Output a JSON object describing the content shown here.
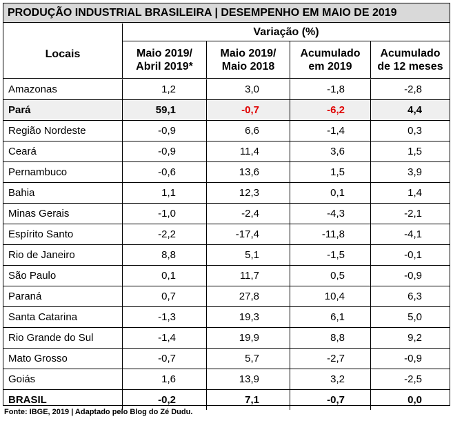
{
  "title": "PRODUÇÃO INDUSTRIAL BRASILEIRA | DESEMPENHO EM MAIO DE 2019",
  "header": {
    "locais": "Locais",
    "variacao": "Variação (%)",
    "col1_line1": "Maio 2019/",
    "col1_line2": "Abril 2019*",
    "col2_line1": "Maio 2019/",
    "col2_line2": "Maio 2018",
    "col3_line1": "Acumulado",
    "col3_line2": "em 2019",
    "col4_line1": "Acumulado",
    "col4_line2": "de 12 meses"
  },
  "highlight_color": "#e00000",
  "rows": [
    {
      "local": "Amazonas",
      "v1": "1,2",
      "v2": "3,0",
      "v3": "-1,8",
      "v4": "-2,8"
    },
    {
      "local": "Pará",
      "v1": "59,1",
      "v2": "-0,7",
      "v3": "-6,2",
      "v4": "4,4"
    },
    {
      "local": "Região Nordeste",
      "v1": "-0,9",
      "v2": "6,6",
      "v3": "-1,4",
      "v4": "0,3"
    },
    {
      "local": "Ceará",
      "v1": "-0,9",
      "v2": "11,4",
      "v3": "3,6",
      "v4": "1,5"
    },
    {
      "local": "Pernambuco",
      "v1": "-0,6",
      "v2": "13,6",
      "v3": "1,5",
      "v4": "3,9"
    },
    {
      "local": "Bahia",
      "v1": "1,1",
      "v2": "12,3",
      "v3": "0,1",
      "v4": "1,4"
    },
    {
      "local": "Minas Gerais",
      "v1": "-1,0",
      "v2": "-2,4",
      "v3": "-4,3",
      "v4": "-2,1"
    },
    {
      "local": "Espírito Santo",
      "v1": "-2,2",
      "v2": "-17,4",
      "v3": "-11,8",
      "v4": "-4,1"
    },
    {
      "local": "Rio de Janeiro",
      "v1": "8,8",
      "v2": "5,1",
      "v3": "-1,5",
      "v4": "-0,1"
    },
    {
      "local": "São Paulo",
      "v1": "0,1",
      "v2": "11,7",
      "v3": "0,5",
      "v4": "-0,9"
    },
    {
      "local": "Paraná",
      "v1": "0,7",
      "v2": "27,8",
      "v3": "10,4",
      "v4": "6,3"
    },
    {
      "local": "Santa Catarina",
      "v1": "-1,3",
      "v2": "19,3",
      "v3": "6,1",
      "v4": "5,0"
    },
    {
      "local": "Rio Grande do Sul",
      "v1": "-1,4",
      "v2": "19,9",
      "v3": "8,8",
      "v4": "9,2"
    },
    {
      "local": "Mato Grosso",
      "v1": "-0,7",
      "v2": "5,7",
      "v3": "-2,7",
      "v4": "-0,9"
    },
    {
      "local": "Goiás",
      "v1": "1,6",
      "v2": "13,9",
      "v3": "3,2",
      "v4": "-2,5"
    },
    {
      "local": "BRASIL",
      "v1": "-0,2",
      "v2": "7,1",
      "v3": "-0,7",
      "v4": "0,0"
    }
  ],
  "source": "Fonte: IBGE, 2019 | Adaptado pelo Blog do Zé Dudu."
}
